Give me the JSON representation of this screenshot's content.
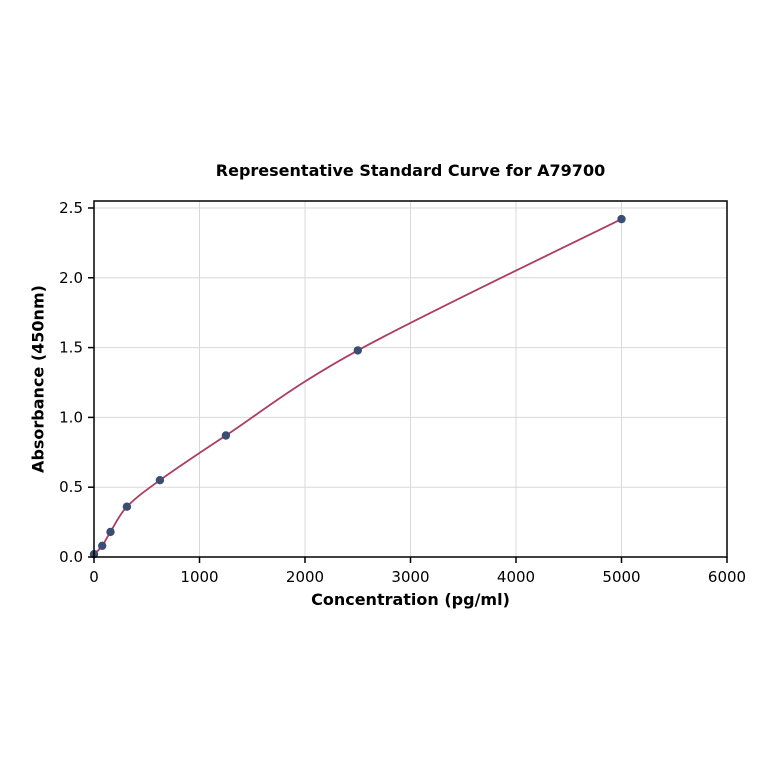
{
  "figure": {
    "background": "#ffffff"
  },
  "chart_data": {
    "type": "scatter",
    "fit_curve": true,
    "title": "Representative Standard Curve for A79700",
    "xlabel": "Concentration (pg/ml)",
    "ylabel": "Absorbance (450nm)",
    "xlim": [
      0,
      6000
    ],
    "ylim": [
      0,
      2.55
    ],
    "x_ticks": [
      0,
      1000,
      2000,
      3000,
      4000,
      5000,
      6000
    ],
    "y_ticks": [
      0.0,
      0.5,
      1.0,
      1.5,
      2.0,
      2.5
    ],
    "grid": true,
    "legend": false,
    "points": {
      "x": [
        0,
        78,
        156,
        312,
        625,
        1250,
        2500,
        5000
      ],
      "y": [
        0.02,
        0.08,
        0.18,
        0.36,
        0.55,
        0.87,
        1.48,
        2.42
      ]
    },
    "point_color": "#3a4e73",
    "line_color": "#ac3d63",
    "grid_color": "#d8d8d8",
    "axis_color": "#000000",
    "text_color": "#000000"
  }
}
